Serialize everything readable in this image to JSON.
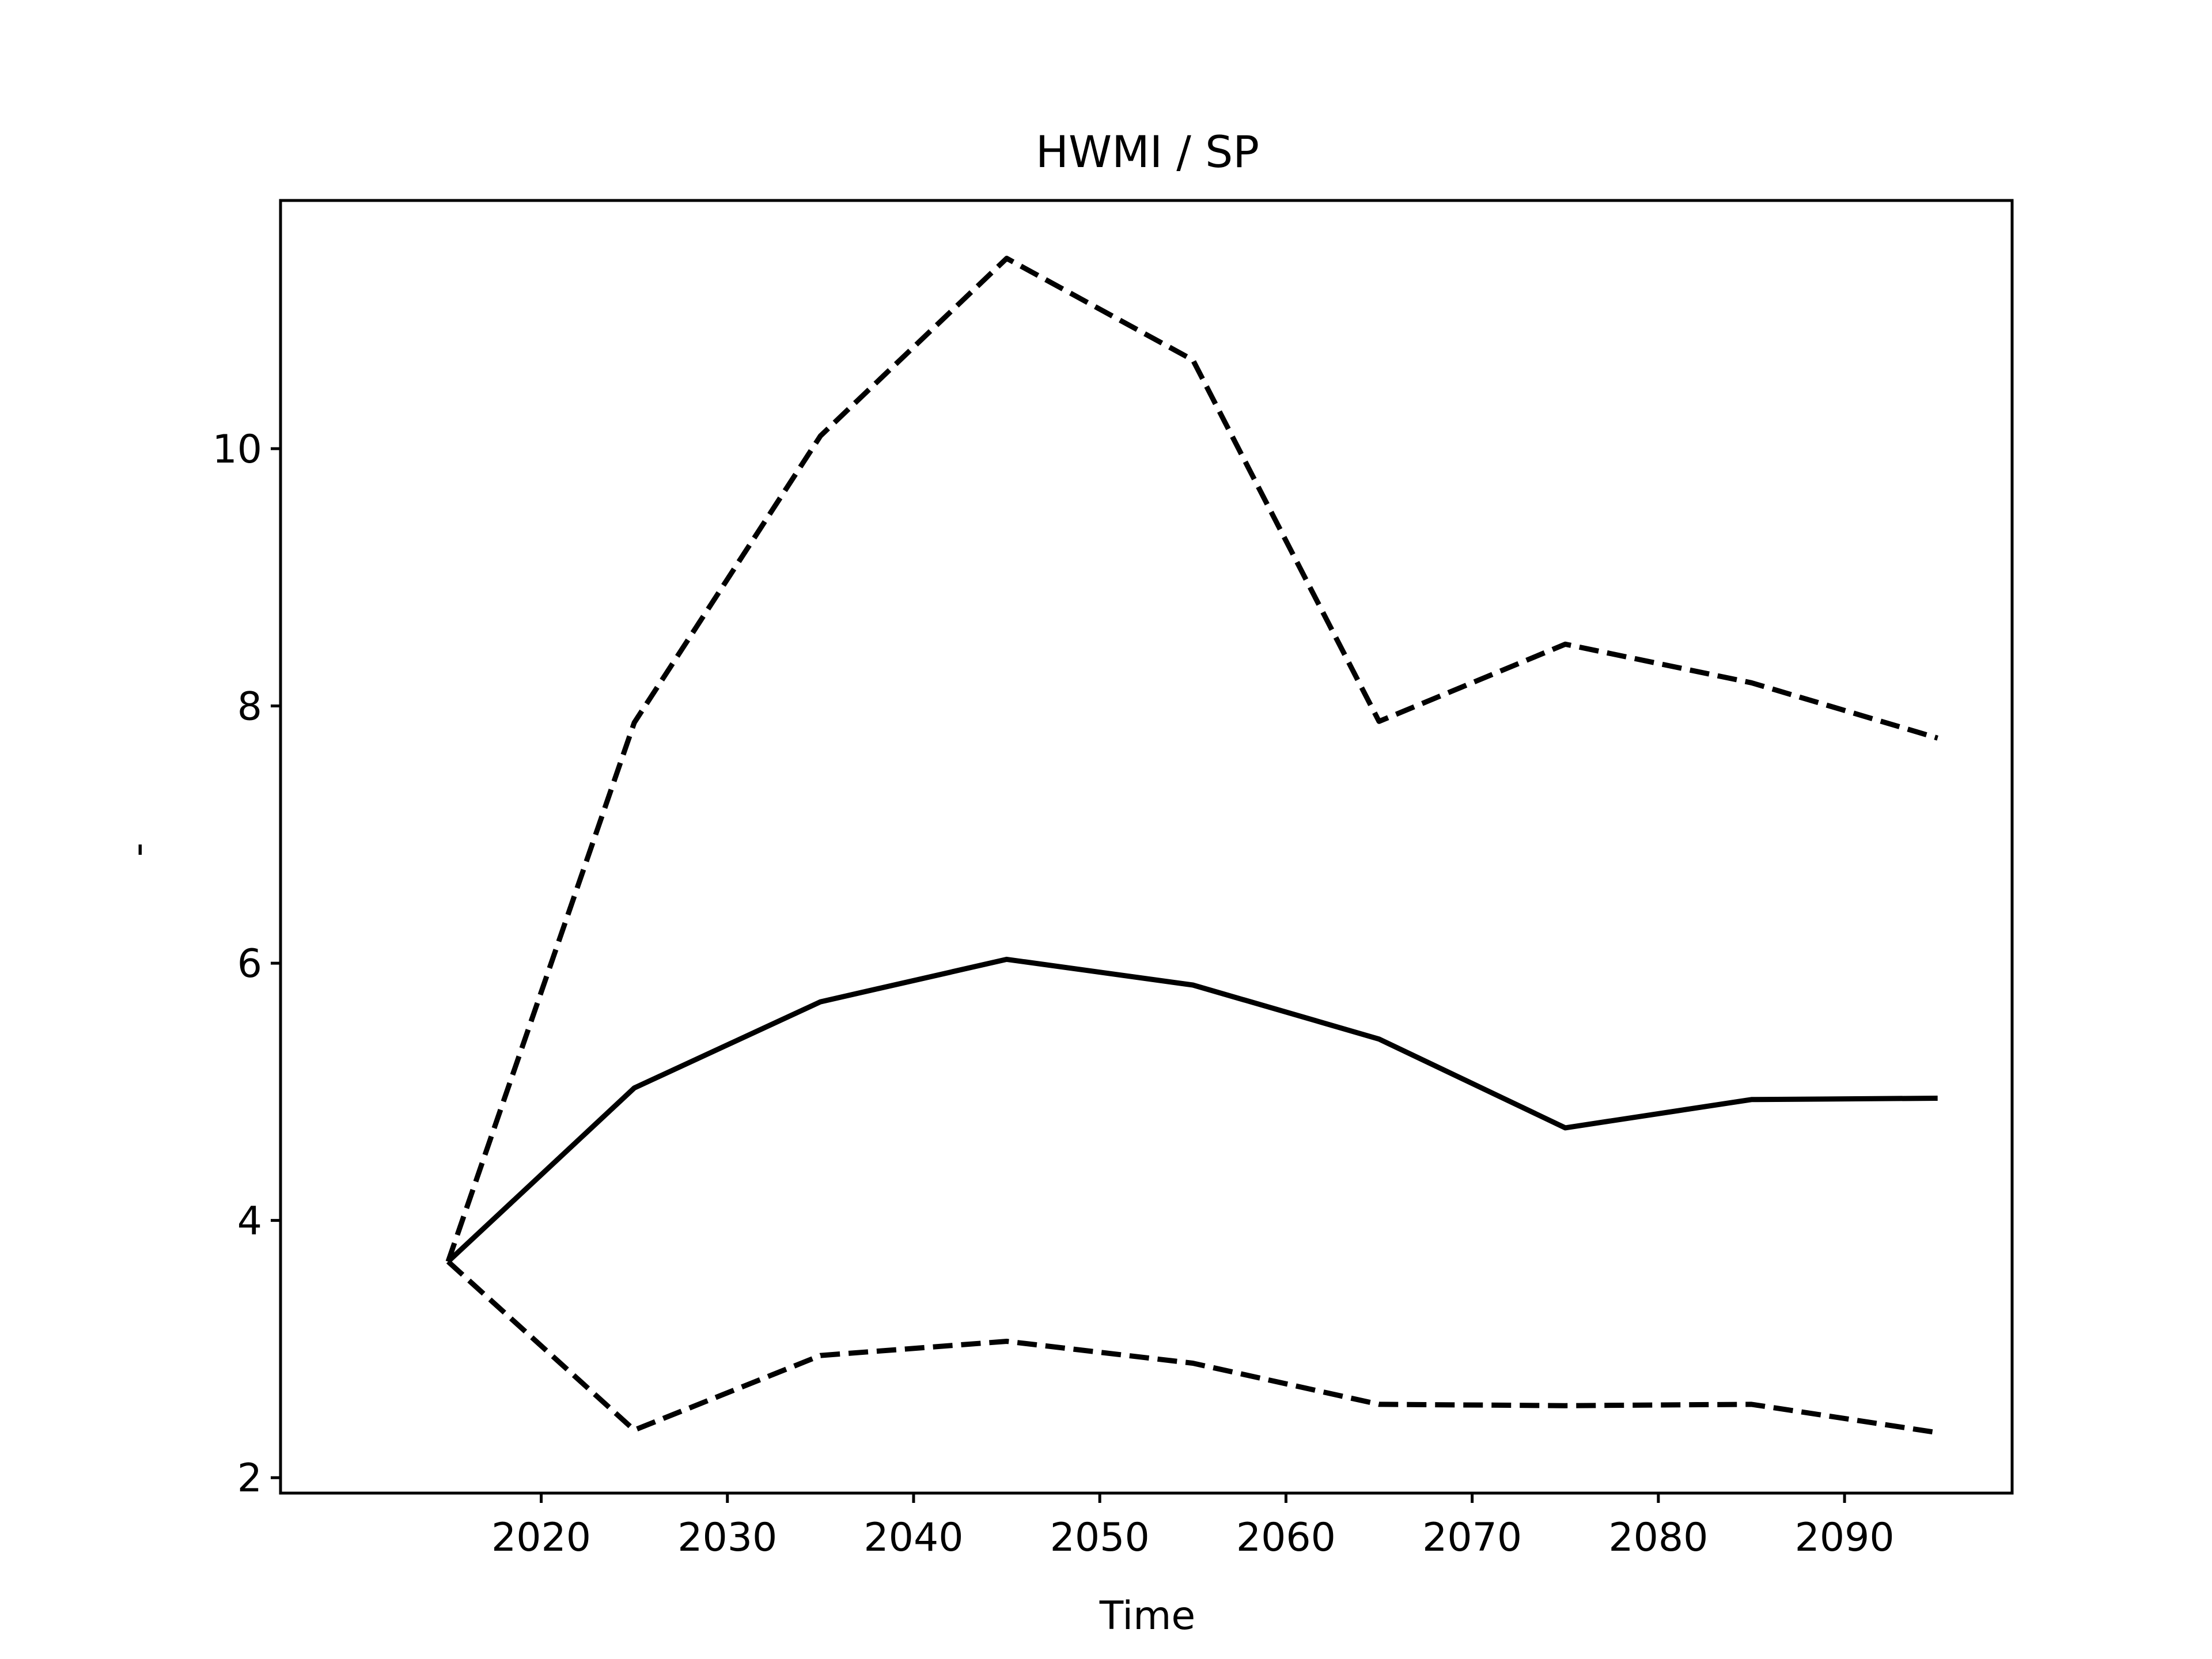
{
  "chart_data": {
    "type": "line",
    "title": "HWMI / SP",
    "xlabel": "Time",
    "ylabel": "-",
    "x": [
      2015,
      2025,
      2035,
      2045,
      2055,
      2065,
      2075,
      2085,
      2095
    ],
    "xlim": [
      2006,
      2099
    ],
    "ylim": [
      1.88,
      11.93
    ],
    "xticks": [
      2020,
      2030,
      2040,
      2050,
      2060,
      2070,
      2080,
      2090
    ],
    "yticks": [
      2,
      4,
      6,
      8,
      10
    ],
    "grid": false,
    "series": [
      {
        "style": "solid",
        "color": "#000000",
        "values": [
          3.68,
          5.03,
          5.7,
          6.03,
          5.83,
          5.41,
          4.72,
          4.94,
          4.95
        ]
      },
      {
        "style": "dashed",
        "color": "#000000",
        "values": [
          3.68,
          7.87,
          10.1,
          11.48,
          10.69,
          7.88,
          8.48,
          8.18,
          7.75
        ]
      },
      {
        "style": "dashed",
        "color": "#000000",
        "values": [
          3.68,
          2.37,
          2.95,
          3.06,
          2.89,
          2.57,
          2.56,
          2.57,
          2.35
        ]
      }
    ]
  }
}
